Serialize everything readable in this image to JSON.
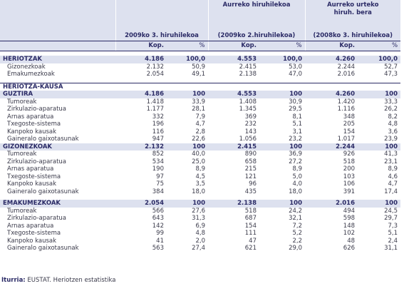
{
  "header": {
    "col1_title": "2009ko 3. hiruhilekoa",
    "col2_title": "Aurreko hiruhilekoa",
    "col2_sub": "(2009ko 2.hiruhilekoa)",
    "col3_title": "Aurreko urteko hiruh. bera",
    "col3_sub": "(2008ko 3. hiruhilekoa)",
    "kop": "Kop.",
    "pct": "%"
  },
  "heriotzak": {
    "label": "HERIOTZAK",
    "values": [
      "4.186",
      "100,0",
      "4.553",
      "100,0",
      "4.260",
      "100,0"
    ],
    "rows": [
      {
        "label": "Gizonezkoak",
        "values": [
          "2.132",
          "50,9",
          "2.415",
          "53,0",
          "2.244",
          "52,7"
        ]
      },
      {
        "label": "Emakumezkoak",
        "values": [
          "2.054",
          "49,1",
          "2.138",
          "47,0",
          "2.016",
          "47,3"
        ]
      }
    ]
  },
  "kausa_title": "HERIOTZA-KAUSA",
  "groups": [
    {
      "label": "GUZTIRA",
      "values": [
        "4.186",
        "100",
        "4.553",
        "100",
        "4.260",
        "100"
      ],
      "rows": [
        {
          "label": "Tumoreak",
          "values": [
            "1.418",
            "33,9",
            "1.408",
            "30,9",
            "1.420",
            "33,3"
          ]
        },
        {
          "label": "Zirkulazio-aparatua",
          "values": [
            "1.177",
            "28,1",
            "1.345",
            "29,5",
            "1.116",
            "26,2"
          ]
        },
        {
          "label": "Arnas aparatua",
          "values": [
            "332",
            "7,9",
            "369",
            "8,1",
            "348",
            "8,2"
          ]
        },
        {
          "label": "Txegoste-sistema",
          "values": [
            "196",
            "4,7",
            "232",
            "5,1",
            "205",
            "4,8"
          ]
        },
        {
          "label": "Kanpoko kausak",
          "values": [
            "116",
            "2,8",
            "143",
            "3,1",
            "154",
            "3,6"
          ]
        },
        {
          "label": "Gaineralo gaixotasunak",
          "values": [
            "947",
            "22,6",
            "1.056",
            "23,2",
            "1.017",
            "23,9"
          ]
        }
      ]
    },
    {
      "label": "GIZONEZKOAK",
      "values": [
        "2.132",
        "100",
        "2.415",
        "100",
        "2.244",
        "100"
      ],
      "rows": [
        {
          "label": "Tumoreak",
          "values": [
            "852",
            "40,0",
            "890",
            "36,9",
            "926",
            "41,3"
          ]
        },
        {
          "label": "Zirkulazio-aparatua",
          "values": [
            "534",
            "25,0",
            "658",
            "27,2",
            "518",
            "23,1"
          ]
        },
        {
          "label": "Arnas aparatua",
          "values": [
            "190",
            "8,9",
            "215",
            "8,9",
            "200",
            "8,9"
          ]
        },
        {
          "label": "Txegoste-sistema",
          "values": [
            "97",
            "4,5",
            "121",
            "5,0",
            "103",
            "4,6"
          ]
        },
        {
          "label": "Kanpoko kausak",
          "values": [
            "75",
            "3,5",
            "96",
            "4,0",
            "106",
            "4,7"
          ]
        },
        {
          "label": "Gaineralo gaixotasunak",
          "values": [
            "384",
            "18,0",
            "435",
            "18,0",
            "391",
            "17,4"
          ]
        }
      ]
    },
    {
      "label": "EMAKUMEZKOAK",
      "values": [
        "2.054",
        "100",
        "2.138",
        "100",
        "2.016",
        "100"
      ],
      "rows": [
        {
          "label": "Tumoreak",
          "values": [
            "566",
            "27,6",
            "518",
            "24,2",
            "494",
            "24,5"
          ]
        },
        {
          "label": "Zirkulazio-aparatua",
          "values": [
            "643",
            "31,3",
            "687",
            "32,1",
            "598",
            "29,7"
          ]
        },
        {
          "label": "Arnas aparatua",
          "values": [
            "142",
            "6,9",
            "154",
            "7,2",
            "148",
            "7,3"
          ]
        },
        {
          "label": "Txegoste-sistema",
          "values": [
            "99",
            "4,8",
            "111",
            "5,2",
            "102",
            "5,1"
          ]
        },
        {
          "label": "Kanpoko kausak",
          "values": [
            "41",
            "2,0",
            "47",
            "2,2",
            "48",
            "2,4"
          ]
        },
        {
          "label": "Gaineralo gaixotasunak",
          "values": [
            "563",
            "27,4",
            "621",
            "29,0",
            "626",
            "31,1"
          ]
        }
      ]
    }
  ],
  "source": {
    "label": "Iturria:",
    "text": " EUSTAT. Heriotzen estatistika"
  }
}
